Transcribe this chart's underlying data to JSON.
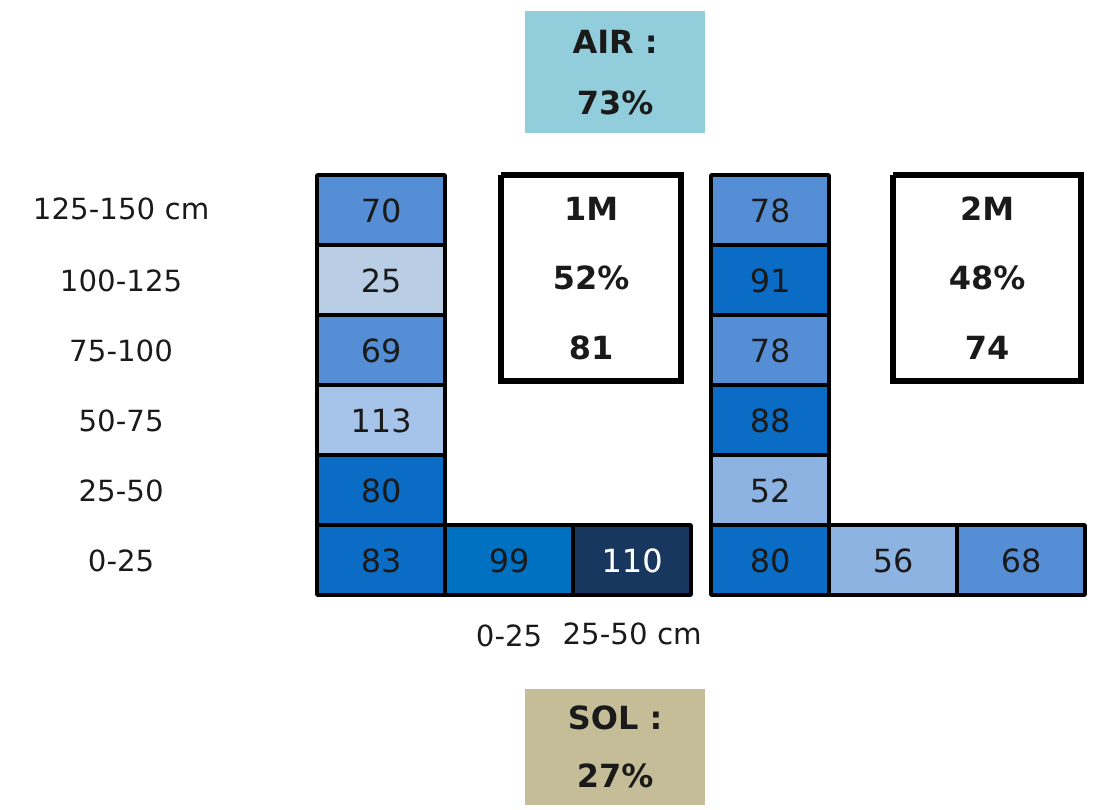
{
  "chart_data": [
    {
      "type": "heatmap",
      "categories": [
        null,
        "0-25",
        "25-50 cm",
        null,
        null,
        null
      ],
      "y_categories": [
        "125-150 cm",
        "100-125",
        "75-100",
        "50-75",
        "25-50",
        "0-25"
      ],
      "cells": [
        [
          70,
          null,
          null,
          78,
          null,
          null
        ],
        [
          25,
          null,
          null,
          91,
          null,
          null
        ],
        [
          69,
          null,
          null,
          78,
          null,
          null
        ],
        [
          113,
          null,
          null,
          88,
          null,
          null
        ],
        [
          80,
          null,
          null,
          52,
          null,
          null
        ],
        [
          83,
          99,
          110,
          80,
          56,
          68
        ]
      ],
      "colors": [
        [
          "#558ed5",
          null,
          null,
          "#558ed5",
          null,
          null
        ],
        [
          "#b9cde5",
          null,
          null,
          "#0a6cc4",
          null,
          null
        ],
        [
          "#558ed5",
          null,
          null,
          "#558ed5",
          null,
          null
        ],
        [
          "#a6c3ea",
          null,
          null,
          "#0a6cc4",
          null,
          null
        ],
        [
          "#0a6cc4",
          null,
          null,
          "#8db3e2",
          null,
          null
        ],
        [
          "#0a6cc4",
          "#0070c0",
          "#17375e",
          "#0a6cc4",
          "#8db3e2",
          "#558ed5"
        ]
      ],
      "data_labels": true,
      "annotations": [
        "1M",
        "52%",
        "81",
        "2M",
        "48%",
        "74"
      ]
    },
    {
      "type": "other",
      "annotations": [
        "AIR :\n73%",
        "SOL :\n27%"
      ],
      "colors": [
        "#92cddc",
        "#c4bd97"
      ]
    }
  ]
}
